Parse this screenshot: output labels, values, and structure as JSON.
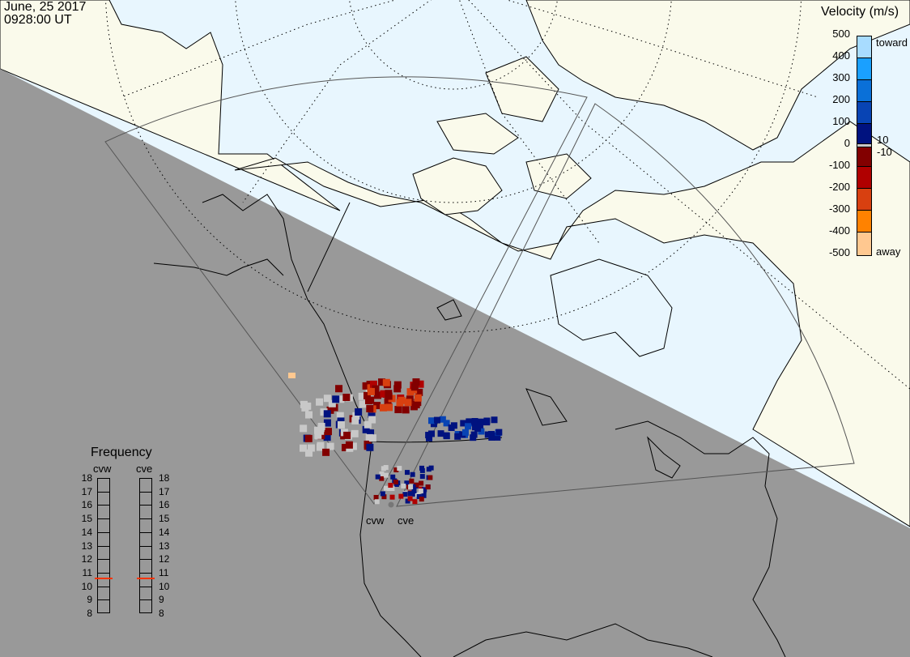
{
  "header": {
    "date": "June, 25 2017",
    "time": "0928:00 UT"
  },
  "colorbar": {
    "title": "Velocity (m/s)",
    "ticks": [
      "500",
      "400",
      "300",
      "200",
      "100",
      "0",
      "-100",
      "-200",
      "-300",
      "-400",
      "-500"
    ],
    "label_top": "toward",
    "label_bottom": "away",
    "ground_scatter_upper": "10",
    "ground_scatter_lower": "-10",
    "colors": [
      "#a8dcff",
      "#1aa0ff",
      "#0a70d8",
      "#0844b4",
      "#00127f",
      "#c8c8c8",
      "#820000",
      "#b00000",
      "#d84010",
      "#ff8200",
      "#ffc890"
    ]
  },
  "frequency": {
    "title": "Frequency",
    "unit_range": [
      8,
      18
    ],
    "ticks": [
      "18",
      "17",
      "16",
      "15",
      "14",
      "13",
      "12",
      "11",
      "10",
      "9",
      "8"
    ],
    "radars": [
      {
        "name": "cvw",
        "value_mhz": 10.6
      },
      {
        "name": "cve",
        "value_mhz": 10.6
      }
    ],
    "marker_color": "#ff3300"
  },
  "map": {
    "radar_labels": [
      "cvw",
      "cve"
    ],
    "colors": {
      "ocean": "#e8f6fe",
      "land": "#fafaeb",
      "night": "#999999",
      "coast": "#000000",
      "fan": "#555555"
    }
  }
}
